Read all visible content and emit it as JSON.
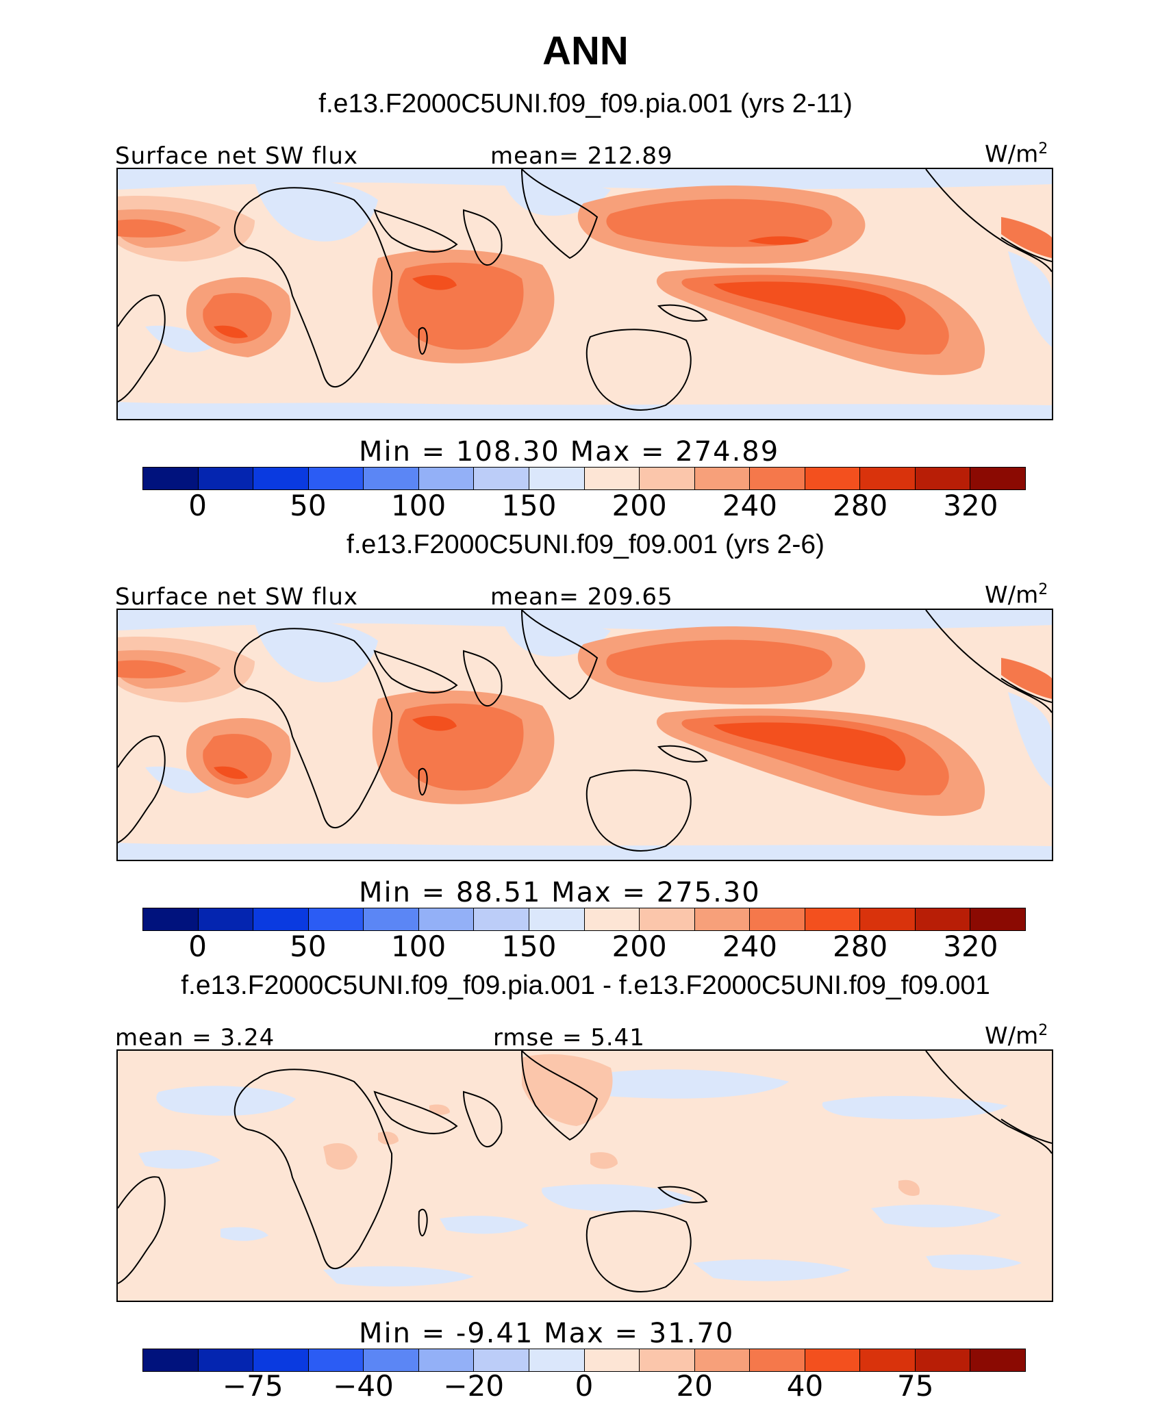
{
  "title": "ANN",
  "colors": [
    "#00127d",
    "#0425b0",
    "#0a3ae0",
    "#2b5cf4",
    "#5b86f5",
    "#93b0f7",
    "#bccdf8",
    "#dbe7fb",
    "#fde5d5",
    "#fbc6ab",
    "#f7a07a",
    "#f5784b",
    "#f3501e",
    "#d9330c",
    "#b81e06",
    "#8b0a02"
  ],
  "land_color": "#fbf0e6",
  "panels": [
    {
      "case_title": "f.e13.F2000C5UNI.f09_f09.pia.001 (yrs 2-11)",
      "left_label": "Surface net SW flux",
      "center_label": "mean= 212.89",
      "units": "W/m",
      "units_sup": "2",
      "min_max": "Min  =  108.30  Max  =  274.89",
      "ticks": [
        "0",
        "50",
        "100",
        "150",
        "200",
        "240",
        "280",
        "320"
      ],
      "field": "abs"
    },
    {
      "case_title": "f.e13.F2000C5UNI.f09_f09.001 (yrs 2-6)",
      "left_label": "Surface net SW flux",
      "center_label": "mean= 209.65",
      "units": "W/m",
      "units_sup": "2",
      "min_max": "Min  =   88.51  Max  =  275.30",
      "ticks": [
        "0",
        "50",
        "100",
        "150",
        "200",
        "240",
        "280",
        "320"
      ],
      "field": "abs"
    },
    {
      "case_title": "f.e13.F2000C5UNI.f09_f09.pia.001 - f.e13.F2000C5UNI.f09_f09.001",
      "left_label": "mean =    3.24",
      "center_label": "rmse =    5.41",
      "units": "W/m",
      "units_sup": "2",
      "min_max": "Min  =   -9.41  Max  =   31.70",
      "ticks": [
        "-75",
        "-40",
        "-20",
        "0",
        "20",
        "40",
        "75"
      ],
      "field": "diff"
    }
  ]
}
